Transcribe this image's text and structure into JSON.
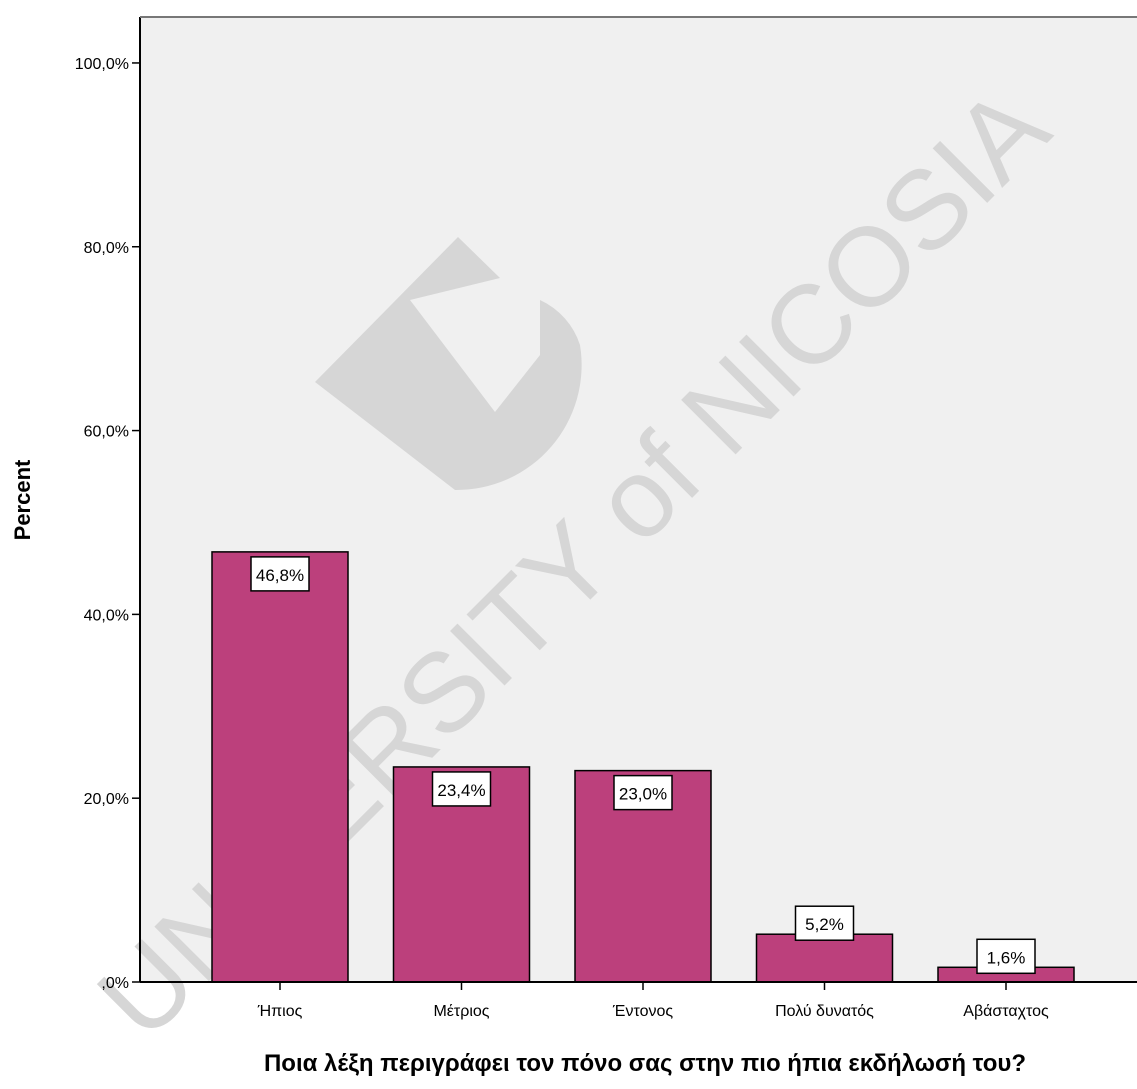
{
  "chart_data": {
    "type": "bar",
    "title": "",
    "xlabel": "Ποια λέξη περιγράφει τον πόνο σας στην πιο ήπια εκδήλωσή του?",
    "ylabel": "Percent",
    "categories": [
      "Ήπιος",
      "Μέτριος",
      "Έντονος",
      "Πολύ δυνατός",
      "Αβάσταχτος"
    ],
    "values": [
      46.8,
      23.4,
      23.0,
      5.2,
      1.6
    ],
    "data_labels": [
      "46,8%",
      "23,4%",
      "23,0%",
      "5,2%",
      "1,6%"
    ],
    "ylim": [
      0,
      105
    ],
    "yticks": [
      0,
      20,
      40,
      60,
      80,
      100
    ],
    "ytick_labels": [
      ",0%",
      "20,0%",
      "40,0%",
      "60,0%",
      "80,0%",
      "100,0%"
    ],
    "bar_color": "#bc407c",
    "plot_background": "#f0f0f0",
    "grid": false,
    "legend": "none"
  },
  "watermark": {
    "text": "UNIVERSITY of NICOSIA",
    "color": "#d6d6d6"
  }
}
